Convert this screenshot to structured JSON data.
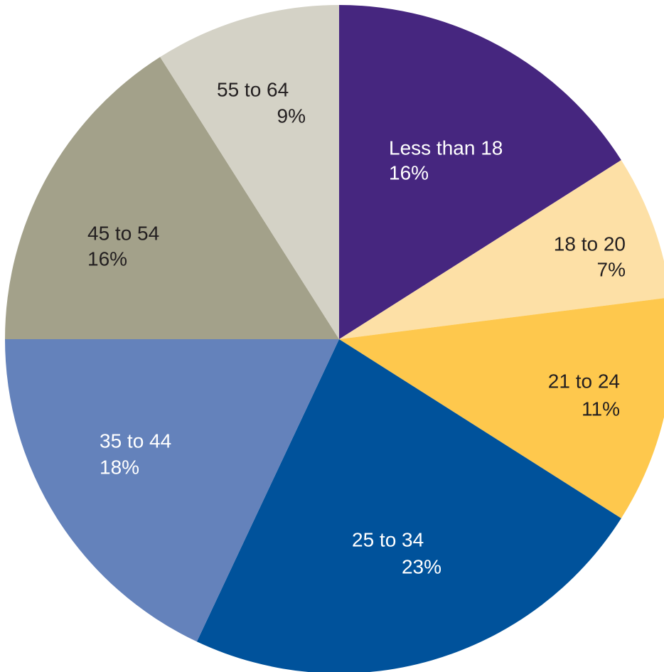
{
  "chart_data": {
    "type": "pie",
    "categories": [
      "Less than 18",
      "18 to 20",
      "21 to 24",
      "25 to 34",
      "35 to 44",
      "45 to 54",
      "55 to 64"
    ],
    "values": [
      16,
      7,
      11,
      23,
      18,
      16,
      9
    ],
    "value_labels": [
      "16%",
      "7%",
      "11%",
      "23%",
      "18%",
      "16%",
      "9%"
    ],
    "colors": [
      "#46267f",
      "#fde0a6",
      "#fec84d",
      "#00529b",
      "#6482bb",
      "#a3a18a",
      "#d4d2c6"
    ]
  }
}
